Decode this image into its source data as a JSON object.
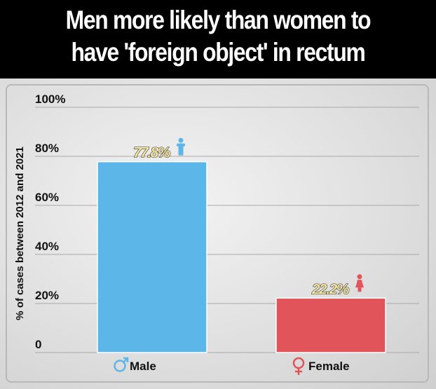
{
  "header": {
    "title_line1": "Men more likely than women to",
    "title_line2": "have 'foreign object' in rectum"
  },
  "chart_data": {
    "type": "bar",
    "categories": [
      "Male",
      "Female"
    ],
    "values": [
      77.8,
      22.2
    ],
    "data_labels": [
      "77.8%",
      "22.2%"
    ],
    "ylabel": "% of cases between 2012 and 2021",
    "ylim": [
      0,
      100
    ],
    "yticks": [
      0,
      20,
      40,
      60,
      80,
      100
    ],
    "ytick_labels": [
      "0",
      "20%",
      "40%",
      "60%",
      "80%",
      "100%"
    ],
    "grid": true,
    "colors": [
      "#5db6e8",
      "#e0545a"
    ],
    "icons": [
      "male-person-icon",
      "female-person-icon"
    ],
    "category_icons": [
      "male-symbol-icon",
      "female-symbol-icon"
    ]
  }
}
